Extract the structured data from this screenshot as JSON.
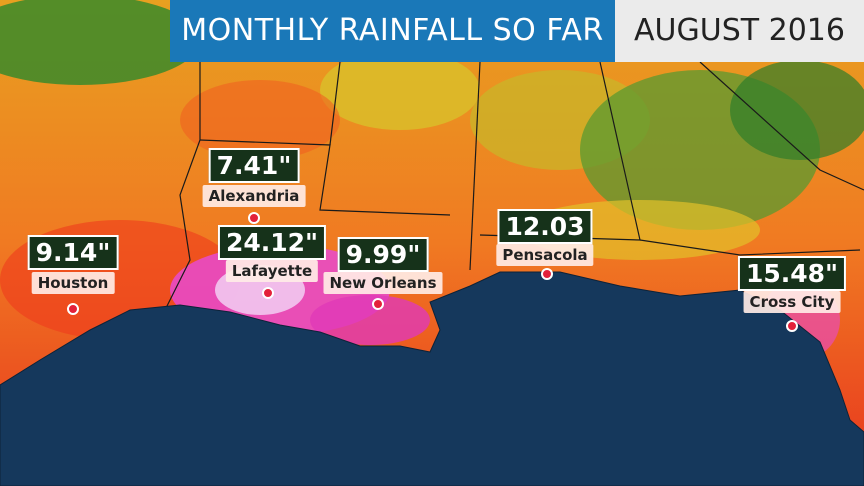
{
  "header": {
    "title": "MONTHLY RAINFALL SO FAR",
    "date": "AUGUST 2016"
  },
  "cities": [
    {
      "name": "Alexandria",
      "amount": "7.41\""
    },
    {
      "name": "Houston",
      "amount": "9.14\""
    },
    {
      "name": "Lafayette",
      "amount": "24.12\""
    },
    {
      "name": "New Orleans",
      "amount": "9.99\""
    },
    {
      "name": "Pensacola",
      "amount": "12.03"
    },
    {
      "name": "Cross City",
      "amount": "15.48\""
    }
  ]
}
